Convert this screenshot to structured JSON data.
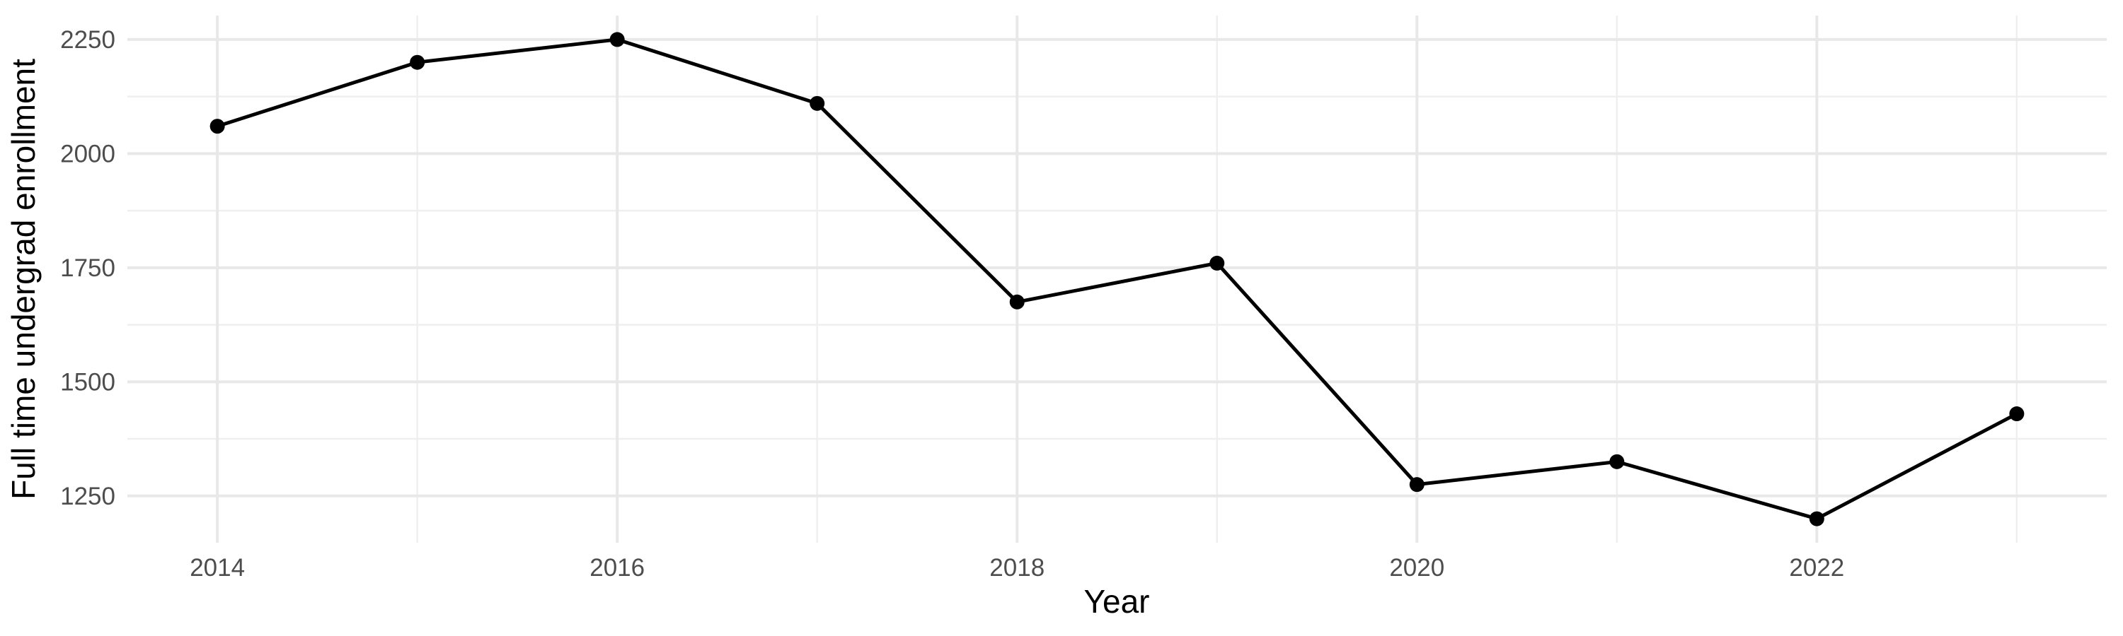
{
  "chart_data": {
    "type": "line",
    "title": "",
    "xlabel": "Year",
    "ylabel": "Full time undergrad enrollment",
    "x": [
      2014,
      2015,
      2016,
      2017,
      2018,
      2019,
      2020,
      2021,
      2022,
      2023
    ],
    "values": [
      2060,
      2200,
      2250,
      2110,
      1675,
      1760,
      1275,
      1325,
      1200,
      1430
    ],
    "series": [
      {
        "name": "Full time undergrad enrollment",
        "values": [
          2060,
          2200,
          2250,
          2110,
          1675,
          1760,
          1275,
          1325,
          1200,
          1430
        ]
      }
    ],
    "xlim": [
      2013.55,
      2023.45
    ],
    "ylim": [
      1147.5,
      2302.5
    ],
    "x_ticks": {
      "values": [
        2014,
        2016,
        2018,
        2020,
        2022
      ],
      "labels": [
        "2014",
        "2016",
        "2018",
        "2020",
        "2022"
      ]
    },
    "x_minor": [
      2015,
      2017,
      2019,
      2021,
      2023
    ],
    "y_ticks": {
      "values": [
        1250,
        1500,
        1750,
        2000,
        2250
      ],
      "labels": [
        "1250",
        "1500",
        "1750",
        "2000",
        "2250"
      ]
    },
    "y_minor": [
      1375,
      1625,
      1875,
      2125
    ],
    "grid": true,
    "legend_position": "none",
    "marker": "point",
    "colors": {
      "background": "#ffffff",
      "line": "#000000",
      "point": "#000000",
      "grid_major": "#e8e8e8",
      "grid_minor": "#efefef",
      "tick_label": "#4d4d4d",
      "axis_title": "#000000"
    }
  }
}
